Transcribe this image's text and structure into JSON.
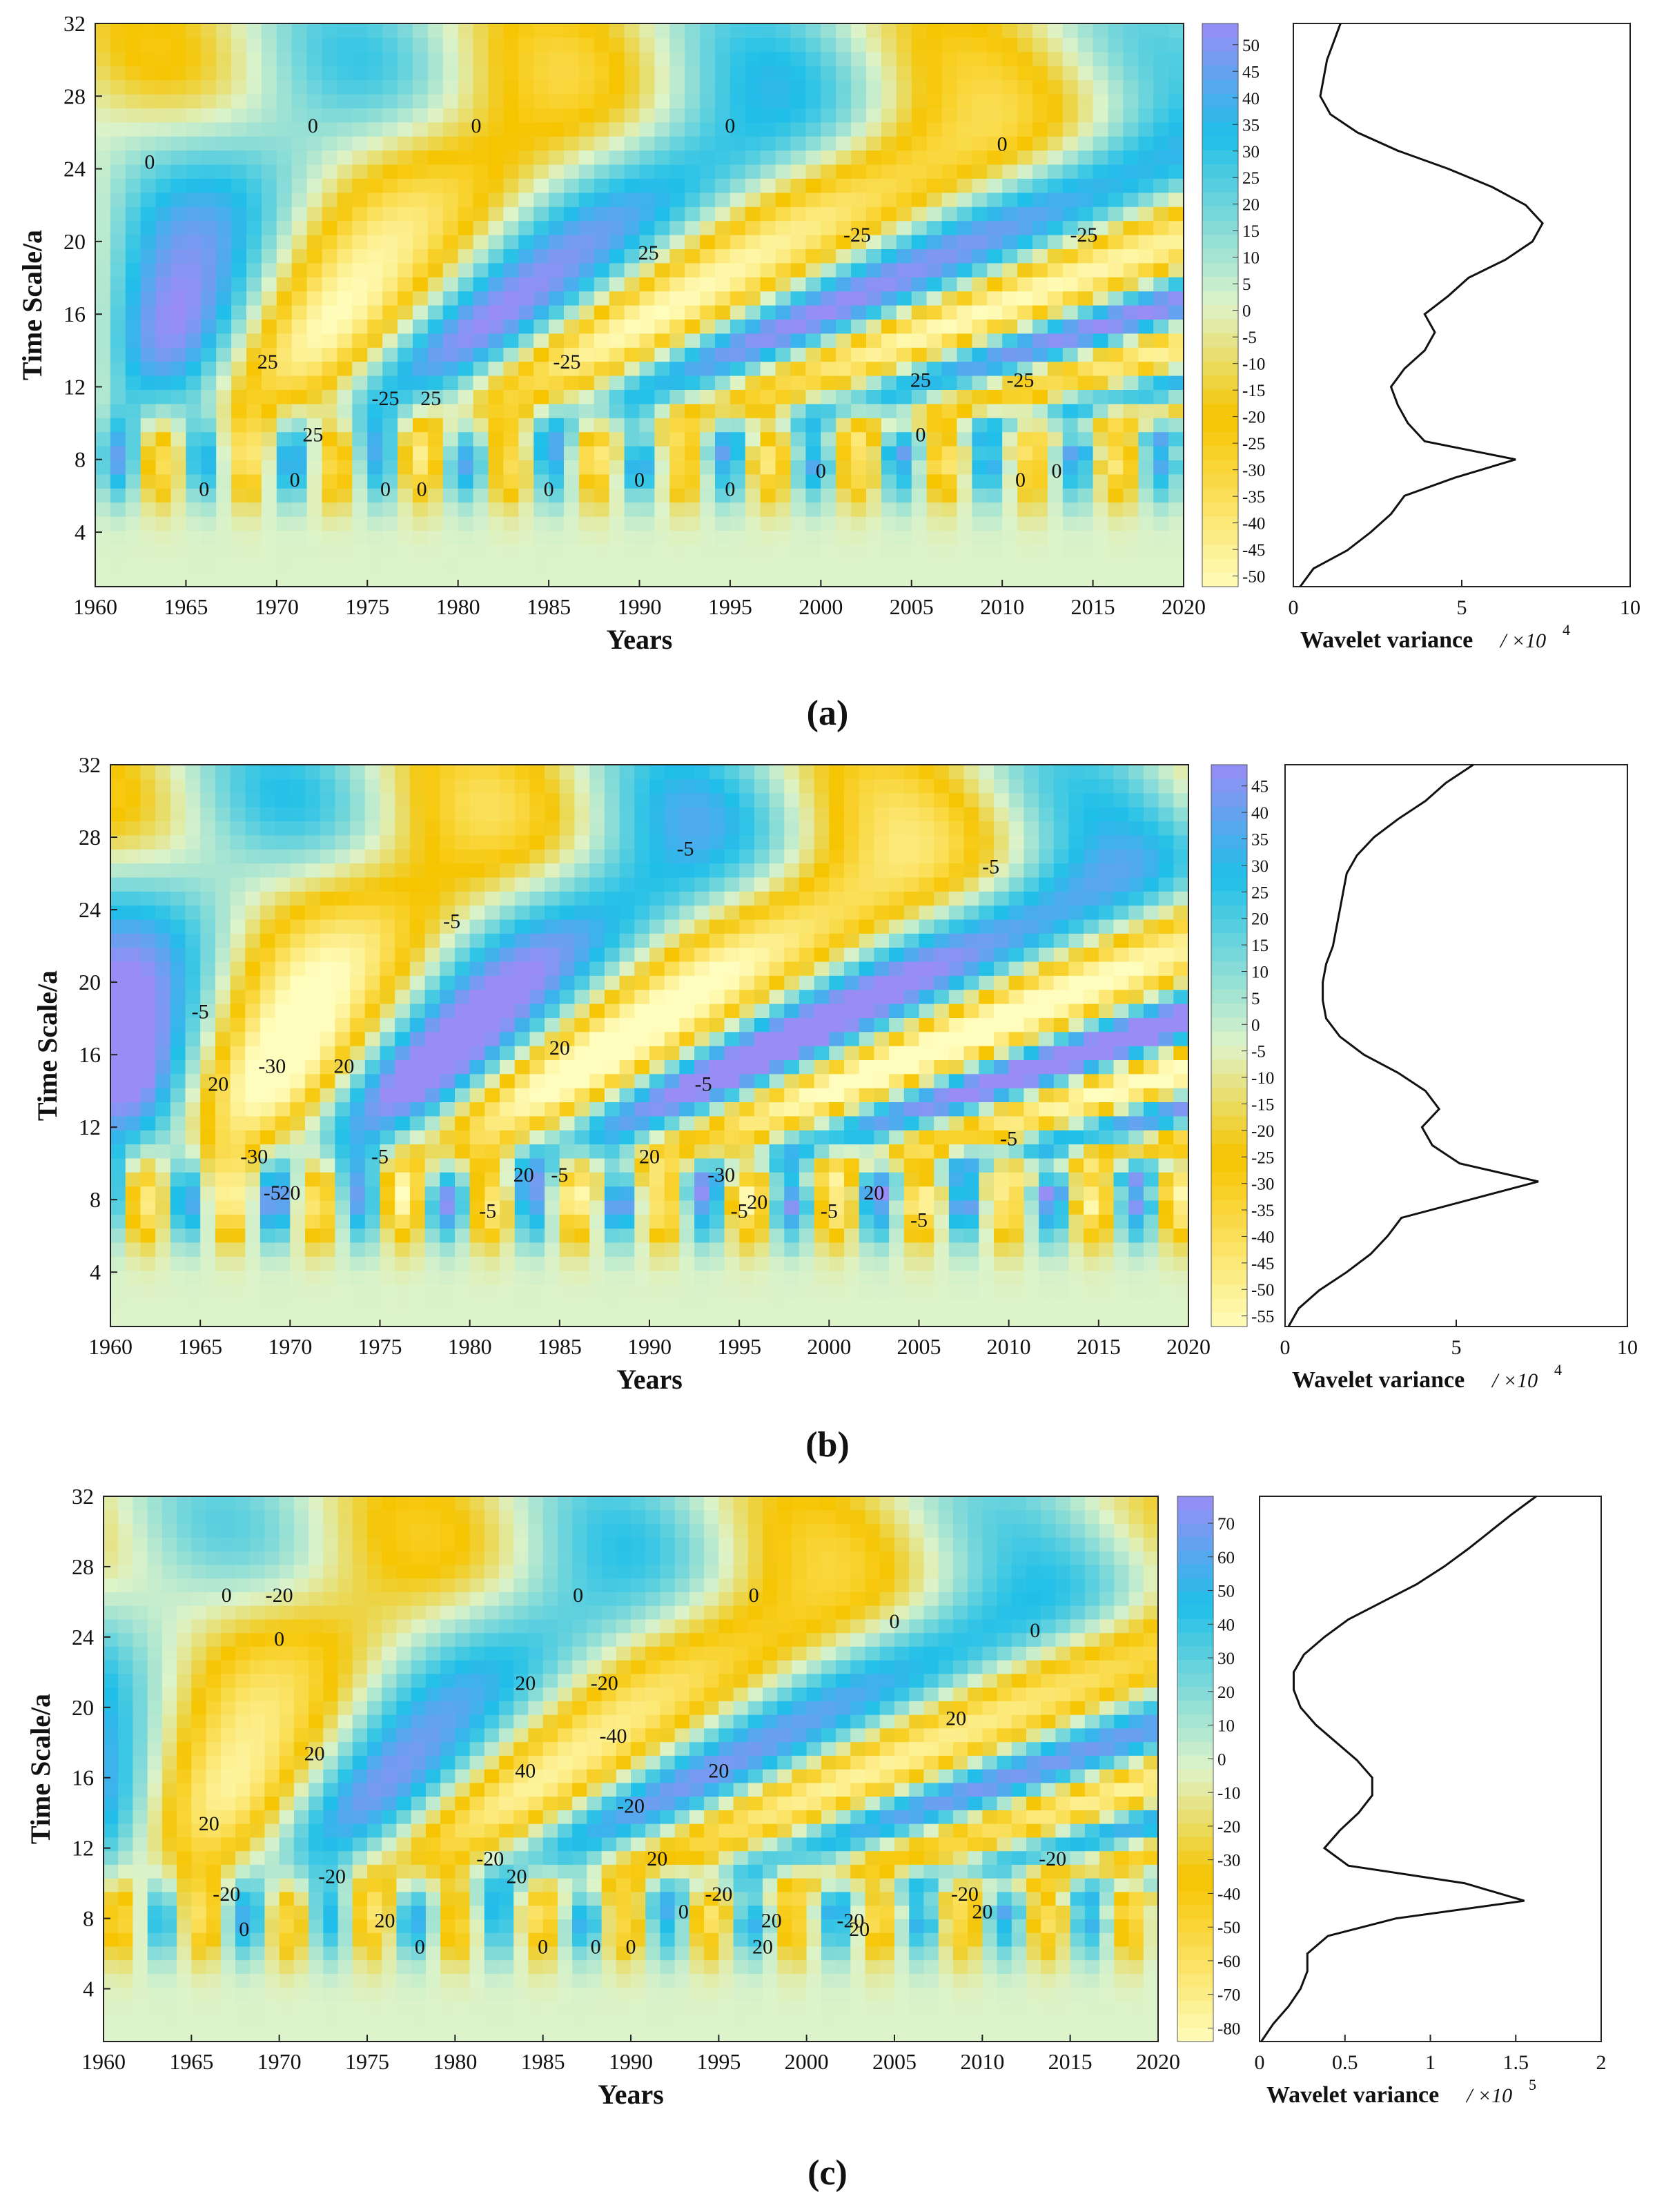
{
  "colorbar_palette": {
    "low": "#fffdbd",
    "mid_low": "#f6c400",
    "zero": "#ddf3c9",
    "mid_high": "#1fbfe9",
    "high": "#9a8cf5"
  },
  "chart_data": [
    {
      "type": "heatmap",
      "label": "(a)",
      "xlabel": "Years",
      "ylabel": "Time Scale/a",
      "x_range": [
        1960,
        2020
      ],
      "y_range": [
        1,
        32
      ],
      "x_ticks": [
        "1960",
        "1965",
        "1970",
        "1975",
        "1980",
        "1985",
        "1990",
        "1995",
        "2000",
        "2005",
        "2010",
        "2015",
        "2020"
      ],
      "y_ticks": [
        "4",
        "8",
        "12",
        "16",
        "20",
        "24",
        "28",
        "32"
      ],
      "colorbar_ticks": [
        "50",
        "45",
        "40",
        "35",
        "30",
        "25",
        "20",
        "15",
        "10",
        "5",
        "0",
        "-5",
        "-10",
        "-15",
        "-20",
        "-25",
        "-30",
        "-35",
        "-40",
        "-45",
        "-50"
      ],
      "colorbar_range": [
        -50,
        55
      ],
      "contour_labels": [
        {
          "text": "0",
          "year": 1963,
          "scale": 24
        },
        {
          "text": "0",
          "year": 1972,
          "scale": 26
        },
        {
          "text": "0",
          "year": 1981,
          "scale": 26
        },
        {
          "text": "0",
          "year": 1995,
          "scale": 26
        },
        {
          "text": "0",
          "year": 2010,
          "scale": 25
        },
        {
          "text": "25",
          "year": 1969.5,
          "scale": 13
        },
        {
          "text": "25",
          "year": 1972,
          "scale": 9
        },
        {
          "text": "-25",
          "year": 1976,
          "scale": 11
        },
        {
          "text": "25",
          "year": 1978.5,
          "scale": 11
        },
        {
          "text": "-25",
          "year": 1986,
          "scale": 13
        },
        {
          "text": "25",
          "year": 1990.5,
          "scale": 19
        },
        {
          "text": "-25",
          "year": 2002,
          "scale": 20
        },
        {
          "text": "25",
          "year": 2005.5,
          "scale": 12
        },
        {
          "text": "-25",
          "year": 2011,
          "scale": 12
        },
        {
          "text": "-25",
          "year": 2014.5,
          "scale": 20
        },
        {
          "text": "0",
          "year": 1966,
          "scale": 6
        },
        {
          "text": "0",
          "year": 1971,
          "scale": 6.5
        },
        {
          "text": "0",
          "year": 1976,
          "scale": 6
        },
        {
          "text": "0",
          "year": 1978,
          "scale": 6
        },
        {
          "text": "0",
          "year": 1985,
          "scale": 6
        },
        {
          "text": "0",
          "year": 1990,
          "scale": 6.5
        },
        {
          "text": "0",
          "year": 1995,
          "scale": 6
        },
        {
          "text": "0",
          "year": 2000,
          "scale": 7
        },
        {
          "text": "0",
          "year": 2005.5,
          "scale": 9
        },
        {
          "text": "0",
          "year": 2011,
          "scale": 6.5
        },
        {
          "text": "0",
          "year": 2013,
          "scale": 7
        }
      ],
      "variance": {
        "xlabel": "Wavelet variance",
        "unit_label": "/ ×10",
        "unit_exp": "4",
        "x_ticks": [
          "0",
          "5",
          "10"
        ],
        "x_range": [
          0,
          10
        ],
        "scale": [
          1,
          2,
          3,
          4,
          5,
          6,
          7,
          8,
          9,
          10,
          11,
          12,
          13,
          14,
          15,
          16,
          17,
          18,
          19,
          20,
          21,
          22,
          23,
          24,
          25,
          26,
          27,
          28,
          29,
          30,
          31,
          32
        ],
        "values": [
          0.2,
          0.6,
          1.6,
          2.3,
          2.9,
          3.3,
          4.8,
          6.6,
          3.9,
          3.4,
          3.1,
          2.9,
          3.3,
          3.9,
          4.2,
          3.9,
          4.6,
          5.2,
          6.3,
          7.1,
          7.4,
          6.9,
          5.9,
          4.6,
          3.1,
          1.9,
          1.1,
          0.8,
          0.9,
          1.0,
          1.2,
          1.4
        ]
      }
    },
    {
      "type": "heatmap",
      "label": "(b)",
      "xlabel": "Years",
      "ylabel": "Time Scale/a",
      "x_range": [
        1960,
        2020
      ],
      "y_range": [
        1,
        32
      ],
      "x_ticks": [
        "1960",
        "1965",
        "1970",
        "1975",
        "1980",
        "1985",
        "1990",
        "1995",
        "2000",
        "2005",
        "2010",
        "2015",
        "2020"
      ],
      "y_ticks": [
        "4",
        "8",
        "12",
        "16",
        "20",
        "24",
        "28",
        "32"
      ],
      "colorbar_ticks": [
        "45",
        "40",
        "35",
        "30",
        "25",
        "20",
        "15",
        "10",
        "5",
        "0",
        "-5",
        "-10",
        "-15",
        "-20",
        "-25",
        "-30",
        "-35",
        "-40",
        "-45",
        "-50",
        "-55"
      ],
      "colorbar_range": [
        -55,
        50
      ],
      "contour_labels": [
        {
          "text": "-5",
          "year": 1965,
          "scale": 18
        },
        {
          "text": "20",
          "year": 1966,
          "scale": 14
        },
        {
          "text": "-30",
          "year": 1969,
          "scale": 15
        },
        {
          "text": "20",
          "year": 1973,
          "scale": 15
        },
        {
          "text": "-5",
          "year": 1979,
          "scale": 23
        },
        {
          "text": "20",
          "year": 1985,
          "scale": 16
        },
        {
          "text": "-5",
          "year": 1992,
          "scale": 27
        },
        {
          "text": "-5",
          "year": 1993,
          "scale": 14
        },
        {
          "text": "-5",
          "year": 2009,
          "scale": 26
        },
        {
          "text": "-5",
          "year": 2010,
          "scale": 11
        },
        {
          "text": "-30",
          "year": 1968,
          "scale": 10
        },
        {
          "text": "-5",
          "year": 1969,
          "scale": 8
        },
        {
          "text": "20",
          "year": 1970,
          "scale": 8
        },
        {
          "text": "-5",
          "year": 1975,
          "scale": 10
        },
        {
          "text": "-5",
          "year": 1981,
          "scale": 7
        },
        {
          "text": "20",
          "year": 1983,
          "scale": 9
        },
        {
          "text": "-5",
          "year": 1985,
          "scale": 9
        },
        {
          "text": "20",
          "year": 1990,
          "scale": 10
        },
        {
          "text": "-30",
          "year": 1994,
          "scale": 9
        },
        {
          "text": "-5",
          "year": 1995,
          "scale": 7
        },
        {
          "text": "20",
          "year": 1996,
          "scale": 7.5
        },
        {
          "text": "-5",
          "year": 2000,
          "scale": 7
        },
        {
          "text": "20",
          "year": 2002.5,
          "scale": 8
        },
        {
          "text": "-5",
          "year": 2005,
          "scale": 6.5
        }
      ],
      "variance": {
        "xlabel": "Wavelet variance",
        "unit_label": "/ ×10",
        "unit_exp": "4",
        "x_ticks": [
          "0",
          "5",
          "10"
        ],
        "x_range": [
          0,
          10
        ],
        "scale": [
          1,
          2,
          3,
          4,
          5,
          6,
          7,
          8,
          9,
          10,
          11,
          12,
          13,
          14,
          15,
          16,
          17,
          18,
          19,
          20,
          21,
          22,
          23,
          24,
          25,
          26,
          27,
          28,
          29,
          30,
          31,
          32
        ],
        "values": [
          0.1,
          0.4,
          1.0,
          1.8,
          2.5,
          3.0,
          3.4,
          5.4,
          7.4,
          5.1,
          4.3,
          4.0,
          4.5,
          4.1,
          3.3,
          2.3,
          1.6,
          1.2,
          1.1,
          1.1,
          1.2,
          1.4,
          1.5,
          1.6,
          1.7,
          1.8,
          2.1,
          2.6,
          3.3,
          4.1,
          4.7,
          5.5
        ]
      }
    },
    {
      "type": "heatmap",
      "label": "(c)",
      "xlabel": "Years",
      "ylabel": "Time Scale/a",
      "x_range": [
        1960,
        2020
      ],
      "y_range": [
        1,
        32
      ],
      "x_ticks": [
        "1960",
        "1965",
        "1970",
        "1975",
        "1980",
        "1985",
        "1990",
        "1995",
        "2000",
        "2005",
        "2010",
        "2015",
        "2020"
      ],
      "y_ticks": [
        "4",
        "8",
        "12",
        "16",
        "20",
        "24",
        "28",
        "32"
      ],
      "colorbar_ticks": [
        "70",
        "60",
        "50",
        "40",
        "30",
        "20",
        "10",
        "0",
        "-10",
        "-20",
        "-30",
        "-40",
        "-50",
        "-60",
        "-70",
        "-80"
      ],
      "colorbar_range": [
        -80,
        80
      ],
      "contour_labels": [
        {
          "text": "0",
          "year": 1967,
          "scale": 26
        },
        {
          "text": "-20",
          "year": 1970,
          "scale": 26
        },
        {
          "text": "0",
          "year": 1970,
          "scale": 23.5
        },
        {
          "text": "20",
          "year": 1972,
          "scale": 17
        },
        {
          "text": "20",
          "year": 1966,
          "scale": 13
        },
        {
          "text": "20",
          "year": 1984,
          "scale": 21
        },
        {
          "text": "40",
          "year": 1984,
          "scale": 16
        },
        {
          "text": "0",
          "year": 1987,
          "scale": 26
        },
        {
          "text": "-20",
          "year": 1988.5,
          "scale": 21
        },
        {
          "text": "-40",
          "year": 1989,
          "scale": 18
        },
        {
          "text": "-20",
          "year": 1990,
          "scale": 14
        },
        {
          "text": "0",
          "year": 1997,
          "scale": 26
        },
        {
          "text": "20",
          "year": 1995,
          "scale": 16
        },
        {
          "text": "0",
          "year": 2005,
          "scale": 24.5
        },
        {
          "text": "0",
          "year": 2013,
          "scale": 24
        },
        {
          "text": "20",
          "year": 2008.5,
          "scale": 19
        },
        {
          "text": "-20",
          "year": 2014,
          "scale": 11
        },
        {
          "text": "-20",
          "year": 1967,
          "scale": 9
        },
        {
          "text": "0",
          "year": 1968,
          "scale": 7
        },
        {
          "text": "-20",
          "year": 1973,
          "scale": 10
        },
        {
          "text": "20",
          "year": 1976,
          "scale": 7.5
        },
        {
          "text": "0",
          "year": 1978,
          "scale": 6
        },
        {
          "text": "-20",
          "year": 1982,
          "scale": 11
        },
        {
          "text": "20",
          "year": 1983.5,
          "scale": 10
        },
        {
          "text": "0",
          "year": 1985,
          "scale": 6
        },
        {
          "text": "0",
          "year": 1988,
          "scale": 6
        },
        {
          "text": "0",
          "year": 1990,
          "scale": 6
        },
        {
          "text": "20",
          "year": 1991.5,
          "scale": 11
        },
        {
          "text": "0",
          "year": 1993,
          "scale": 8
        },
        {
          "text": "-20",
          "year": 1995,
          "scale": 9
        },
        {
          "text": "20",
          "year": 1998,
          "scale": 7.5
        },
        {
          "text": "20",
          "year": 1997.5,
          "scale": 6
        },
        {
          "text": "-20",
          "year": 2002.5,
          "scale": 7.5
        },
        {
          "text": "20",
          "year": 2003,
          "scale": 7
        },
        {
          "text": "-20",
          "year": 2009,
          "scale": 9
        },
        {
          "text": "20",
          "year": 2010,
          "scale": 8
        }
      ],
      "variance": {
        "xlabel": "Wavelet variance",
        "unit_label": "/ ×10",
        "unit_exp": "5",
        "x_ticks": [
          "0",
          "0.5",
          "1",
          "1.5",
          "2"
        ],
        "x_range": [
          0,
          2
        ],
        "scale": [
          1,
          2,
          3,
          4,
          5,
          6,
          7,
          8,
          9,
          10,
          11,
          12,
          13,
          14,
          15,
          16,
          17,
          18,
          19,
          20,
          21,
          22,
          23,
          24,
          25,
          26,
          27,
          28,
          29,
          30,
          31,
          32
        ],
        "values": [
          0.01,
          0.08,
          0.17,
          0.24,
          0.28,
          0.28,
          0.4,
          0.8,
          1.55,
          1.2,
          0.52,
          0.38,
          0.47,
          0.58,
          0.66,
          0.66,
          0.57,
          0.45,
          0.33,
          0.24,
          0.2,
          0.2,
          0.26,
          0.38,
          0.52,
          0.72,
          0.92,
          1.08,
          1.22,
          1.35,
          1.48,
          1.62
        ]
      }
    }
  ]
}
